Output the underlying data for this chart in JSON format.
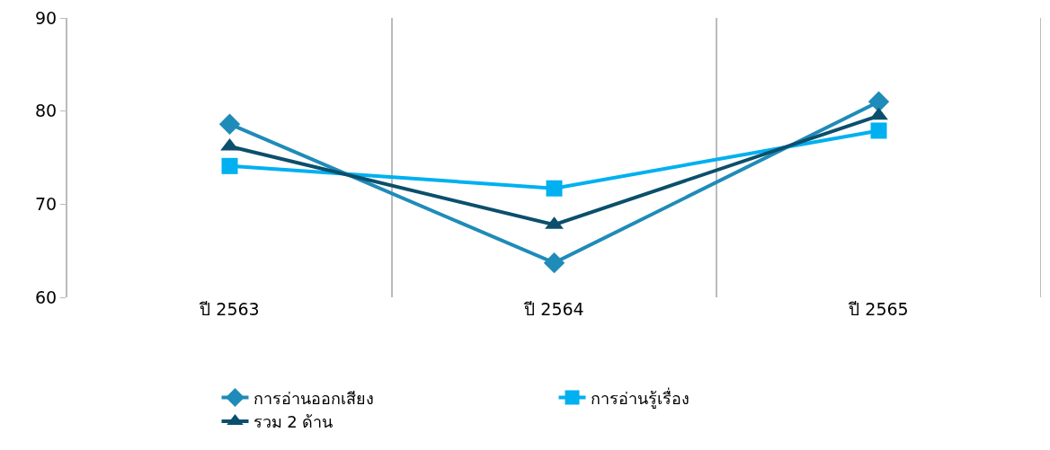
{
  "chart_data": {
    "type": "line",
    "categories": [
      "ปี 2563",
      "ปี 2564",
      "ปี 2565"
    ],
    "series": [
      {
        "name": "การอ่านออกเสียง",
        "color": "#1f8bb8",
        "values": [
          78.6,
          63.7,
          81.0
        ],
        "marker": "diamond"
      },
      {
        "name": "การอ่านรู้เรื่อง",
        "color": "#00b0f0",
        "values": [
          74.1,
          71.7,
          77.9
        ],
        "marker": "square"
      },
      {
        "name": "รวม 2 ด้าน",
        "color": "#0b4f6c",
        "values": [
          76.2,
          67.8,
          79.5
        ],
        "marker": "triangle"
      }
    ],
    "ylim": [
      60,
      90
    ],
    "yticks": [
      60,
      70,
      80,
      90
    ],
    "grid": "x",
    "legend": "bottom",
    "line_style": "solid"
  }
}
